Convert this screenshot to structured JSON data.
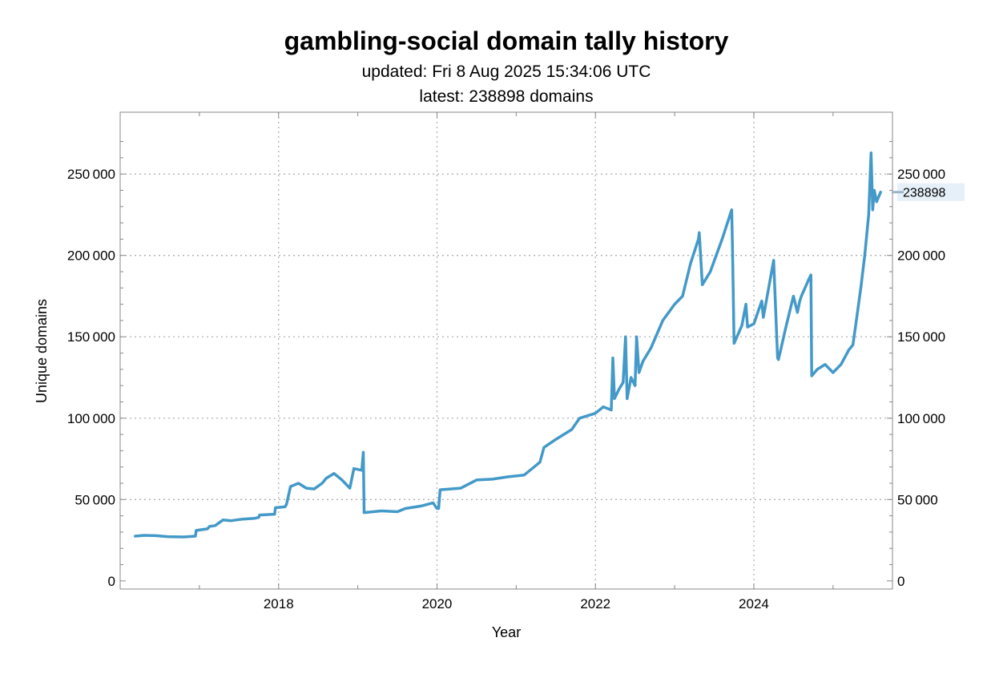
{
  "chart_data": {
    "type": "line",
    "title": "gambling-social domain tally history",
    "subtitle_updated": "updated: Fri 8 Aug 2025 15:34:06 UTC",
    "subtitle_latest": "latest: 238898 domains",
    "xlabel": "Year",
    "ylabel": "Unique domains",
    "xlim": [
      2016.0,
      2025.75
    ],
    "ylim": [
      -5000,
      288000
    ],
    "x_ticks": [
      2018,
      2020,
      2022,
      2024
    ],
    "x_tick_labels": [
      "2018",
      "2020",
      "2022",
      "2024"
    ],
    "y_ticks": [
      0,
      50000,
      100000,
      150000,
      200000,
      250000
    ],
    "y_tick_labels": [
      "0",
      "50 000",
      "100 000",
      "150 000",
      "200 000",
      "250 000"
    ],
    "grid": true,
    "latest_value": 238898,
    "latest_label": "238898",
    "color": "#4399c8",
    "series": [
      {
        "x": [
          2016.19,
          2016.3,
          2016.45,
          2016.6,
          2016.8,
          2016.95,
          2016.96,
          2017.1,
          2017.13,
          2017.2,
          2017.3,
          2017.4,
          2017.55,
          2017.7,
          2017.75,
          2017.76,
          2017.95,
          2017.96,
          2018.08,
          2018.1,
          2018.15,
          2018.25,
          2018.35,
          2018.45,
          2018.55,
          2018.6,
          2018.7,
          2018.8,
          2018.9,
          2018.95,
          2019.05,
          2019.07,
          2019.08,
          2019.3,
          2019.5,
          2019.6,
          2019.8,
          2019.95,
          2020.0,
          2020.02,
          2020.04,
          2020.3,
          2020.5,
          2020.7,
          2020.9,
          2021.1,
          2021.25,
          2021.3,
          2021.35,
          2021.5,
          2021.7,
          2021.8,
          2022.0,
          2022.1,
          2022.2,
          2022.22,
          2022.24,
          2022.3,
          2022.35,
          2022.38,
          2022.4,
          2022.45,
          2022.5,
          2022.52,
          2022.55,
          2022.6,
          2022.7,
          2022.85,
          2023.0,
          2023.1,
          2023.2,
          2023.3,
          2023.31,
          2023.35,
          2023.45,
          2023.6,
          2023.7,
          2023.72,
          2023.73,
          2023.75,
          2023.85,
          2023.88,
          2023.9,
          2023.92,
          2024.0,
          2024.05,
          2024.1,
          2024.12,
          2024.15,
          2024.25,
          2024.3,
          2024.31,
          2024.33,
          2024.4,
          2024.5,
          2024.55,
          2024.58,
          2024.6,
          2024.7,
          2024.72,
          2024.73,
          2024.8,
          2024.9,
          2025.0,
          2025.1,
          2025.2,
          2025.25,
          2025.28,
          2025.35,
          2025.4,
          2025.45,
          2025.48,
          2025.5,
          2025.52,
          2025.55,
          2025.6
        ],
        "values": [
          27500,
          28000,
          27800,
          27200,
          27000,
          27500,
          31000,
          32000,
          33500,
          34000,
          37500,
          37000,
          38000,
          38500,
          39000,
          40500,
          41000,
          45000,
          45500,
          47000,
          58000,
          60000,
          57000,
          56500,
          60000,
          63000,
          66000,
          62000,
          57000,
          69000,
          68000,
          79000,
          42000,
          43000,
          42500,
          44500,
          46000,
          48000,
          44500,
          44500,
          56000,
          57000,
          62000,
          62500,
          64000,
          65000,
          71000,
          73000,
          82000,
          87000,
          93000,
          100000,
          103000,
          107000,
          105000,
          137000,
          112000,
          118000,
          122000,
          150000,
          112000,
          125000,
          120000,
          150000,
          128000,
          135000,
          143000,
          160000,
          170000,
          175000,
          195000,
          210000,
          214000,
          182000,
          190000,
          210000,
          225000,
          228000,
          205000,
          146000,
          157000,
          165000,
          170000,
          156000,
          158000,
          165000,
          172000,
          162000,
          170000,
          197000,
          137000,
          136000,
          140000,
          155000,
          175000,
          165000,
          172000,
          175000,
          186000,
          188000,
          126000,
          130000,
          133000,
          128000,
          133000,
          142000,
          145000,
          155000,
          180000,
          200000,
          225000,
          263000,
          228000,
          240000,
          233000,
          238898
        ]
      }
    ]
  }
}
